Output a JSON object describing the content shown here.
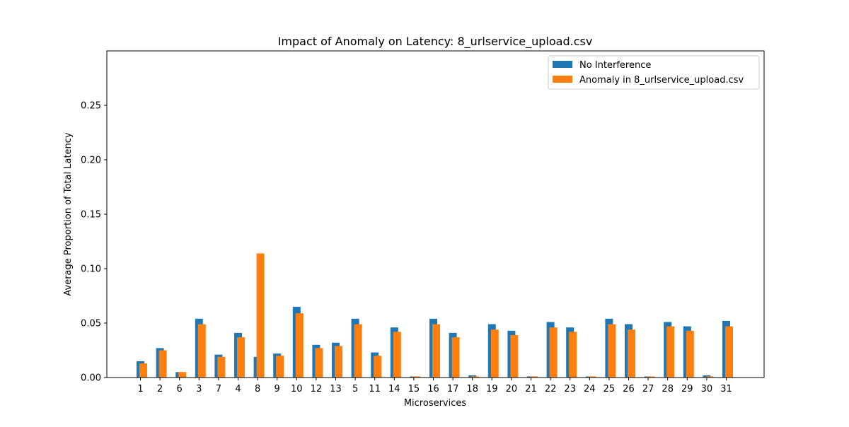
{
  "chart_data": {
    "type": "bar",
    "title": "Impact of Anomaly on Latency: 8_urlservice_upload.csv",
    "xlabel": "Microservices",
    "ylabel": "Average Proportion of Total Latency",
    "ylim": [
      0,
      0.3
    ],
    "yticks": [
      "0.00",
      "0.05",
      "0.10",
      "0.15",
      "0.20",
      "0.25"
    ],
    "grid": false,
    "legend_position": "top-right",
    "categories": [
      "1",
      "2",
      "6",
      "3",
      "7",
      "4",
      "8",
      "9",
      "10",
      "12",
      "13",
      "5",
      "11",
      "14",
      "15",
      "16",
      "17",
      "18",
      "19",
      "20",
      "21",
      "22",
      "23",
      "24",
      "25",
      "26",
      "27",
      "28",
      "29",
      "30",
      "31"
    ],
    "series": [
      {
        "name": "No Interference",
        "color": "#1f77b4",
        "values": [
          0.015,
          0.027,
          0.005,
          0.054,
          0.021,
          0.041,
          0.019,
          0.022,
          0.065,
          0.03,
          0.032,
          0.054,
          0.023,
          0.046,
          0.001,
          0.054,
          0.041,
          0.002,
          0.049,
          0.043,
          0.001,
          0.051,
          0.046,
          0.001,
          0.054,
          0.049,
          0.001,
          0.051,
          0.047,
          0.002,
          0.052
        ]
      },
      {
        "name": "Anomaly in 8_urlservice_upload.csv",
        "color": "#ff7f0e",
        "values": [
          0.013,
          0.025,
          0.005,
          0.049,
          0.019,
          0.037,
          0.114,
          0.02,
          0.059,
          0.027,
          0.029,
          0.049,
          0.02,
          0.042,
          0.001,
          0.049,
          0.037,
          0.001,
          0.044,
          0.039,
          0.001,
          0.046,
          0.042,
          0.001,
          0.049,
          0.044,
          0.001,
          0.047,
          0.043,
          0.001,
          0.047
        ]
      }
    ]
  }
}
